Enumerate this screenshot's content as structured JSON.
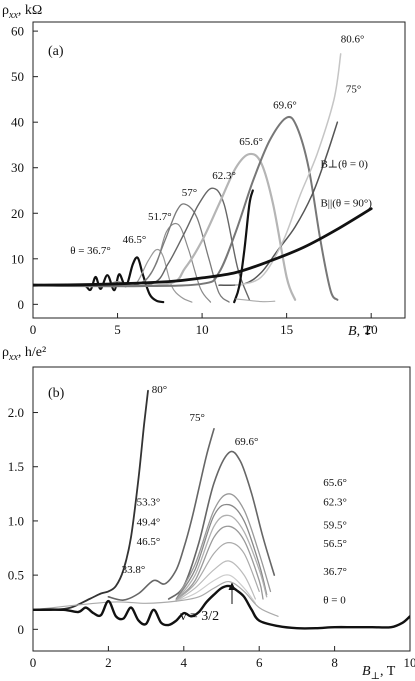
{
  "chart_data": [
    {
      "type": "line",
      "panel_label": "(a)",
      "ylabel_main": "ρ",
      "ylabel_sub": "xx",
      "ylabel_unit": ", kΩ",
      "xlabel_main": "B",
      "xlabel_unit": ", T",
      "xlim": [
        0,
        22
      ],
      "ylim": [
        -3,
        62
      ],
      "xticks": [
        0,
        5,
        10,
        15,
        20
      ],
      "yticks": [
        0,
        10,
        20,
        30,
        40,
        50,
        60
      ],
      "series": [
        {
          "name": "θ = 36.7°",
          "color": "#111111",
          "width": 2.2,
          "x": [
            0,
            1,
            2,
            3,
            3.4,
            3.7,
            4.0,
            4.4,
            4.8,
            5.1,
            5.5,
            5.9,
            6.2,
            6.5,
            6.9,
            7.3,
            7.7
          ],
          "y": [
            4.3,
            4.2,
            4.1,
            4.2,
            3.2,
            6.0,
            3.4,
            6.4,
            3.1,
            6.6,
            4.0,
            8.8,
            10.2,
            6.5,
            2.2,
            0.8,
            0.5
          ]
        },
        {
          "name": "46.5°",
          "color": "#9a9a9a",
          "width": 1.2,
          "x": [
            0,
            2,
            4,
            5,
            6,
            6.8,
            7.3,
            7.7,
            8.2,
            8.8,
            9.4
          ],
          "y": [
            4.2,
            4.1,
            4.0,
            5.0,
            4.2,
            9.5,
            12.0,
            10.5,
            4.0,
            1.5,
            0.5
          ]
        },
        {
          "name": "51.7°",
          "color": "#8a8a8a",
          "width": 1.2,
          "x": [
            0,
            3,
            5,
            6.5,
            7.3,
            7.9,
            8.6,
            9.2,
            9.9,
            10.5
          ],
          "y": [
            4.2,
            4.0,
            4.3,
            5.0,
            9.0,
            16.0,
            17.5,
            12.0,
            3.5,
            0.5
          ]
        },
        {
          "name": "57°",
          "color": "#7a7a7a",
          "width": 1.3,
          "x": [
            0,
            3,
            6,
            7.0,
            7.8,
            8.5,
            9.0,
            9.7,
            10.4,
            11.0,
            11.6
          ],
          "y": [
            4.2,
            4.0,
            4.2,
            7.0,
            14.0,
            20.5,
            22.0,
            19.0,
            10.0,
            2.5,
            0.5
          ]
        },
        {
          "name": "62.3°",
          "color": "#666666",
          "width": 1.4,
          "x": [
            0,
            4,
            7,
            8.0,
            9.0,
            9.8,
            10.6,
            11.3,
            12.1,
            12.8
          ],
          "y": [
            4.2,
            4.0,
            4.5,
            9.0,
            16.0,
            22.0,
            25.5,
            22.0,
            8.0,
            1.0
          ]
        },
        {
          "name": "65.6°",
          "color": "#b5b5b5",
          "width": 2.2,
          "x": [
            0,
            4,
            8,
            9.0,
            10.0,
            11.0,
            12.0,
            12.8,
            13.5,
            14.2,
            15.0,
            15.5
          ],
          "y": [
            4.2,
            4.0,
            4.5,
            8.0,
            14.0,
            22.0,
            30.0,
            33.0,
            31.0,
            22.0,
            6.0,
            1.0
          ]
        },
        {
          "name": "69.6°",
          "color": "#777777",
          "width": 2.0,
          "x": [
            0,
            6,
            10,
            11.0,
            12.0,
            13.0,
            14.0,
            15.0,
            15.6,
            16.3,
            17.0,
            17.6,
            18.0
          ],
          "y": [
            4.2,
            4.0,
            4.5,
            7.0,
            16.0,
            27.0,
            36.0,
            41.0,
            39.0,
            30.0,
            14.0,
            3.0,
            1.0
          ]
        },
        {
          "name": "75°",
          "color": "#555555",
          "width": 1.5,
          "x": [
            11,
            12.5,
            13.5,
            14.5,
            15.5,
            16.5,
            17.3,
            18.0
          ],
          "y": [
            4.2,
            4.5,
            7.0,
            12.0,
            17.0,
            24.0,
            32.0,
            40.0
          ]
        },
        {
          "name": "80.6°",
          "color": "#c5c5c5",
          "width": 1.5,
          "x": [
            12,
            13.5,
            14.8,
            15.8,
            16.8,
            17.8,
            18.2
          ],
          "y": [
            4.2,
            6.0,
            14.0,
            24.0,
            33.0,
            45.0,
            55.0
          ]
        },
        {
          "name": "B⊥(θ = 0)",
          "color": "#111111",
          "width": 2.2,
          "x": [
            11.9,
            12.2,
            12.5,
            12.8,
            13.0
          ],
          "y": [
            0.5,
            4.0,
            12.0,
            22.0,
            25.0
          ]
        },
        {
          "name": "B||(θ = 90°)",
          "color": "#111111",
          "width": 2.8,
          "x": [
            0,
            4,
            8,
            10,
            12,
            14,
            16,
            18,
            20
          ],
          "y": [
            4.2,
            4.4,
            5.0,
            5.8,
            7.0,
            9.5,
            12.5,
            16.5,
            21.0
          ]
        },
        {
          "name": "",
          "color": "#aaaaaa",
          "width": 1.1,
          "x": [
            12,
            13.5,
            14.3
          ],
          "y": [
            1.2,
            0.6,
            0.7
          ]
        }
      ],
      "labels": [
        {
          "text": "80.6°",
          "x": 18.2,
          "y": 57.5
        },
        {
          "text": "75°",
          "x": 18.5,
          "y": 46.5
        },
        {
          "text": "69.6°",
          "x": 14.2,
          "y": 43.0
        },
        {
          "text": "65.6°",
          "x": 12.2,
          "y": 35.0
        },
        {
          "text": "62.3°",
          "x": 10.6,
          "y": 27.5
        },
        {
          "text": "57°",
          "x": 8.8,
          "y": 23.8
        },
        {
          "text": "51.7°",
          "x": 6.8,
          "y": 18.5
        },
        {
          "text": "46.5°",
          "x": 5.3,
          "y": 13.5
        },
        {
          "text": "θ = 36.7°",
          "x": 2.2,
          "y": 11.0
        },
        {
          "text": "B⊥(θ = 0)",
          "x": 17.0,
          "y": 30.0
        },
        {
          "text": "B||(θ = 90°)",
          "x": 17.0,
          "y": 21.5
        }
      ]
    },
    {
      "type": "line",
      "panel_label": "(b)",
      "ylabel_main": "ρ",
      "ylabel_sub": "xx",
      "ylabel_unit": ", h/e²",
      "xlabel_main": "B",
      "xlabel_sub": "⊥",
      "xlabel_unit": ", T",
      "annotation": "ν = 3/2",
      "xlim": [
        0,
        10
      ],
      "ylim": [
        -0.2,
        2.42
      ],
      "xticks": [
        0,
        2,
        4,
        6,
        8,
        10
      ],
      "yticks": [
        0,
        0.5,
        1.0,
        1.5,
        2.0
      ],
      "ytick_labels": [
        "0",
        "0.5",
        "1.0",
        "1.5",
        "2.0"
      ],
      "series": [
        {
          "name": "80°",
          "color": "#333333",
          "width": 1.8,
          "x": [
            0,
            0.5,
            1.0,
            1.5,
            1.8,
            2.0,
            2.2,
            2.4,
            2.6,
            2.8,
            2.95,
            3.05
          ],
          "y": [
            0.18,
            0.18,
            0.2,
            0.28,
            0.33,
            0.35,
            0.4,
            0.55,
            0.85,
            1.4,
            1.9,
            2.2
          ]
        },
        {
          "name": "75°",
          "color": "#666666",
          "width": 1.6,
          "x": [
            2.0,
            2.4,
            2.8,
            3.2,
            3.5,
            3.8,
            4.0,
            4.2,
            4.4,
            4.6,
            4.8
          ],
          "y": [
            0.3,
            0.27,
            0.33,
            0.45,
            0.42,
            0.55,
            0.75,
            1.0,
            1.3,
            1.6,
            1.85
          ]
        },
        {
          "name": "69.6°",
          "color": "#666666",
          "width": 1.6,
          "x": [
            3.6,
            4.0,
            4.4,
            4.8,
            5.2,
            5.5,
            5.8,
            6.1,
            6.4
          ],
          "y": [
            0.28,
            0.4,
            0.8,
            1.35,
            1.63,
            1.55,
            1.25,
            0.85,
            0.5
          ]
        },
        {
          "name": "65.6°",
          "color": "#999999",
          "width": 1.3,
          "x": [
            3.8,
            4.3,
            4.8,
            5.2,
            5.6,
            6.0,
            6.3
          ],
          "y": [
            0.28,
            0.6,
            1.1,
            1.25,
            1.1,
            0.7,
            0.35
          ]
        },
        {
          "name": "62.3°",
          "color": "#888888",
          "width": 1.3,
          "x": [
            3.8,
            4.3,
            4.8,
            5.2,
            5.6,
            6.0,
            6.2
          ],
          "y": [
            0.28,
            0.55,
            1.05,
            1.15,
            1.0,
            0.6,
            0.32
          ]
        },
        {
          "name": "59.5°",
          "color": "#b0b0b0",
          "width": 1.3,
          "x": [
            3.8,
            4.3,
            4.8,
            5.2,
            5.6,
            6.0,
            6.2
          ],
          "y": [
            0.27,
            0.5,
            0.95,
            1.05,
            0.9,
            0.55,
            0.3
          ]
        },
        {
          "name": "56.5°",
          "color": "#999999",
          "width": 1.3,
          "x": [
            3.8,
            4.3,
            4.8,
            5.2,
            5.6,
            6.0,
            6.1
          ],
          "y": [
            0.27,
            0.45,
            0.85,
            0.95,
            0.82,
            0.45,
            0.28
          ]
        },
        {
          "name": "53.3°",
          "color": "#aaaaaa",
          "width": 1.2,
          "x": [
            3.8,
            4.3,
            4.8,
            5.2,
            5.6,
            6.0
          ],
          "y": [
            0.27,
            0.42,
            0.7,
            0.8,
            0.7,
            0.35
          ]
        },
        {
          "name": "49.4°",
          "color": "#bbbbbb",
          "width": 1.2,
          "x": [
            3.8,
            4.3,
            4.8,
            5.2,
            5.6,
            5.9
          ],
          "y": [
            0.26,
            0.38,
            0.55,
            0.63,
            0.5,
            0.28
          ]
        },
        {
          "name": "46.5°",
          "color": "#cccccc",
          "width": 1.2,
          "x": [
            3.8,
            4.3,
            4.8,
            5.2,
            5.6,
            5.9
          ],
          "y": [
            0.26,
            0.33,
            0.45,
            0.5,
            0.38,
            0.24
          ]
        },
        {
          "name": "36.7°",
          "color": "#aaaaaa",
          "width": 1.2,
          "x": [
            0,
            2.0,
            3.0,
            3.8,
            4.4,
            4.8,
            5.2,
            5.6,
            6.0,
            6.5
          ],
          "y": [
            0.18,
            0.25,
            0.24,
            0.26,
            0.3,
            0.38,
            0.44,
            0.35,
            0.2,
            0.12
          ]
        },
        {
          "name": "θ = 0",
          "color": "#111111",
          "width": 2.4,
          "x": [
            0,
            0.8,
            1.2,
            1.4,
            1.6,
            1.8,
            2.0,
            2.2,
            2.4,
            2.6,
            2.8,
            3.0,
            3.2,
            3.4,
            3.6,
            3.8,
            4.0,
            4.2,
            4.4,
            4.6,
            4.8,
            5.0,
            5.2,
            5.4,
            5.6,
            5.8,
            6.0,
            6.5,
            7.0,
            7.5,
            8.0,
            8.5,
            9.0,
            9.5,
            9.8,
            10.0
          ],
          "y": [
            0.18,
            0.18,
            0.16,
            0.2,
            0.15,
            0.13,
            0.26,
            0.12,
            0.1,
            0.2,
            0.08,
            0.05,
            0.18,
            0.06,
            0.04,
            0.08,
            0.15,
            0.12,
            0.16,
            0.25,
            0.32,
            0.38,
            0.4,
            0.36,
            0.3,
            0.18,
            0.08,
            0.03,
            0.01,
            0.01,
            0.02,
            0.02,
            0.02,
            0.02,
            0.06,
            0.12
          ]
        }
      ],
      "labels": [
        {
          "text": "80°",
          "x": 3.15,
          "y": 2.18
        },
        {
          "text": "75°",
          "x": 4.15,
          "y": 1.92
        },
        {
          "text": "69.6°",
          "x": 5.35,
          "y": 1.7
        },
        {
          "text": "65.6°",
          "x": 7.7,
          "y": 1.32
        },
        {
          "text": "62.3°",
          "x": 7.7,
          "y": 1.14
        },
        {
          "text": "59.5°",
          "x": 7.7,
          "y": 0.93
        },
        {
          "text": "56.5°",
          "x": 7.7,
          "y": 0.76
        },
        {
          "text": "53.3°",
          "x": 2.75,
          "y": 1.14
        },
        {
          "text": "49.4°",
          "x": 2.75,
          "y": 0.96
        },
        {
          "text": "46.5°",
          "x": 2.75,
          "y": 0.78
        },
        {
          "text": "33.8°",
          "x": 2.35,
          "y": 0.52
        },
        {
          "text": "36.7°",
          "x": 7.7,
          "y": 0.5
        },
        {
          "text": "θ = 0",
          "x": 7.7,
          "y": 0.24
        }
      ]
    }
  ]
}
